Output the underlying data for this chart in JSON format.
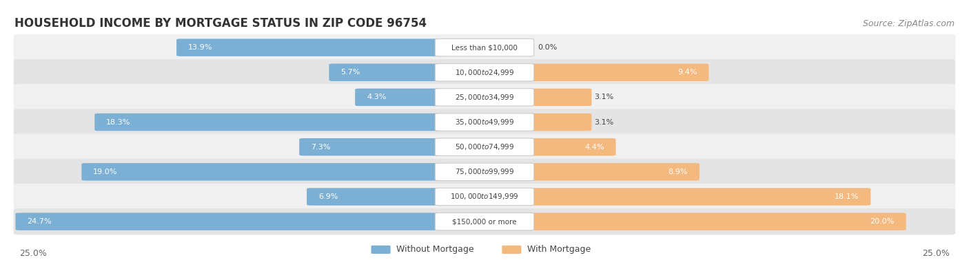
{
  "title": "HOUSEHOLD INCOME BY MORTGAGE STATUS IN ZIP CODE 96754",
  "source": "Source: ZipAtlas.com",
  "categories": [
    "Less than $10,000",
    "$10,000 to $24,999",
    "$25,000 to $34,999",
    "$35,000 to $49,999",
    "$50,000 to $74,999",
    "$75,000 to $99,999",
    "$100,000 to $149,999",
    "$150,000 or more"
  ],
  "without_mortgage": [
    13.9,
    5.7,
    4.3,
    18.3,
    7.3,
    19.0,
    6.9,
    24.7
  ],
  "with_mortgage": [
    0.0,
    9.4,
    3.1,
    3.1,
    4.4,
    8.9,
    18.1,
    20.0
  ],
  "color_without": "#7BAFD4",
  "color_with": "#F4B97F",
  "color_without_dark": "#5A8FB8",
  "color_with_dark": "#E09050",
  "axis_max": 25.0,
  "title_fontsize": 12,
  "bar_label_fontsize": 8,
  "cat_label_fontsize": 8,
  "source_fontsize": 9,
  "legend_fontsize": 9,
  "row_bg_even": "#f0f0f0",
  "row_bg_odd": "#e4e4e4",
  "label_box_color": "#ffffff",
  "label_box_edge": "#cccccc"
}
